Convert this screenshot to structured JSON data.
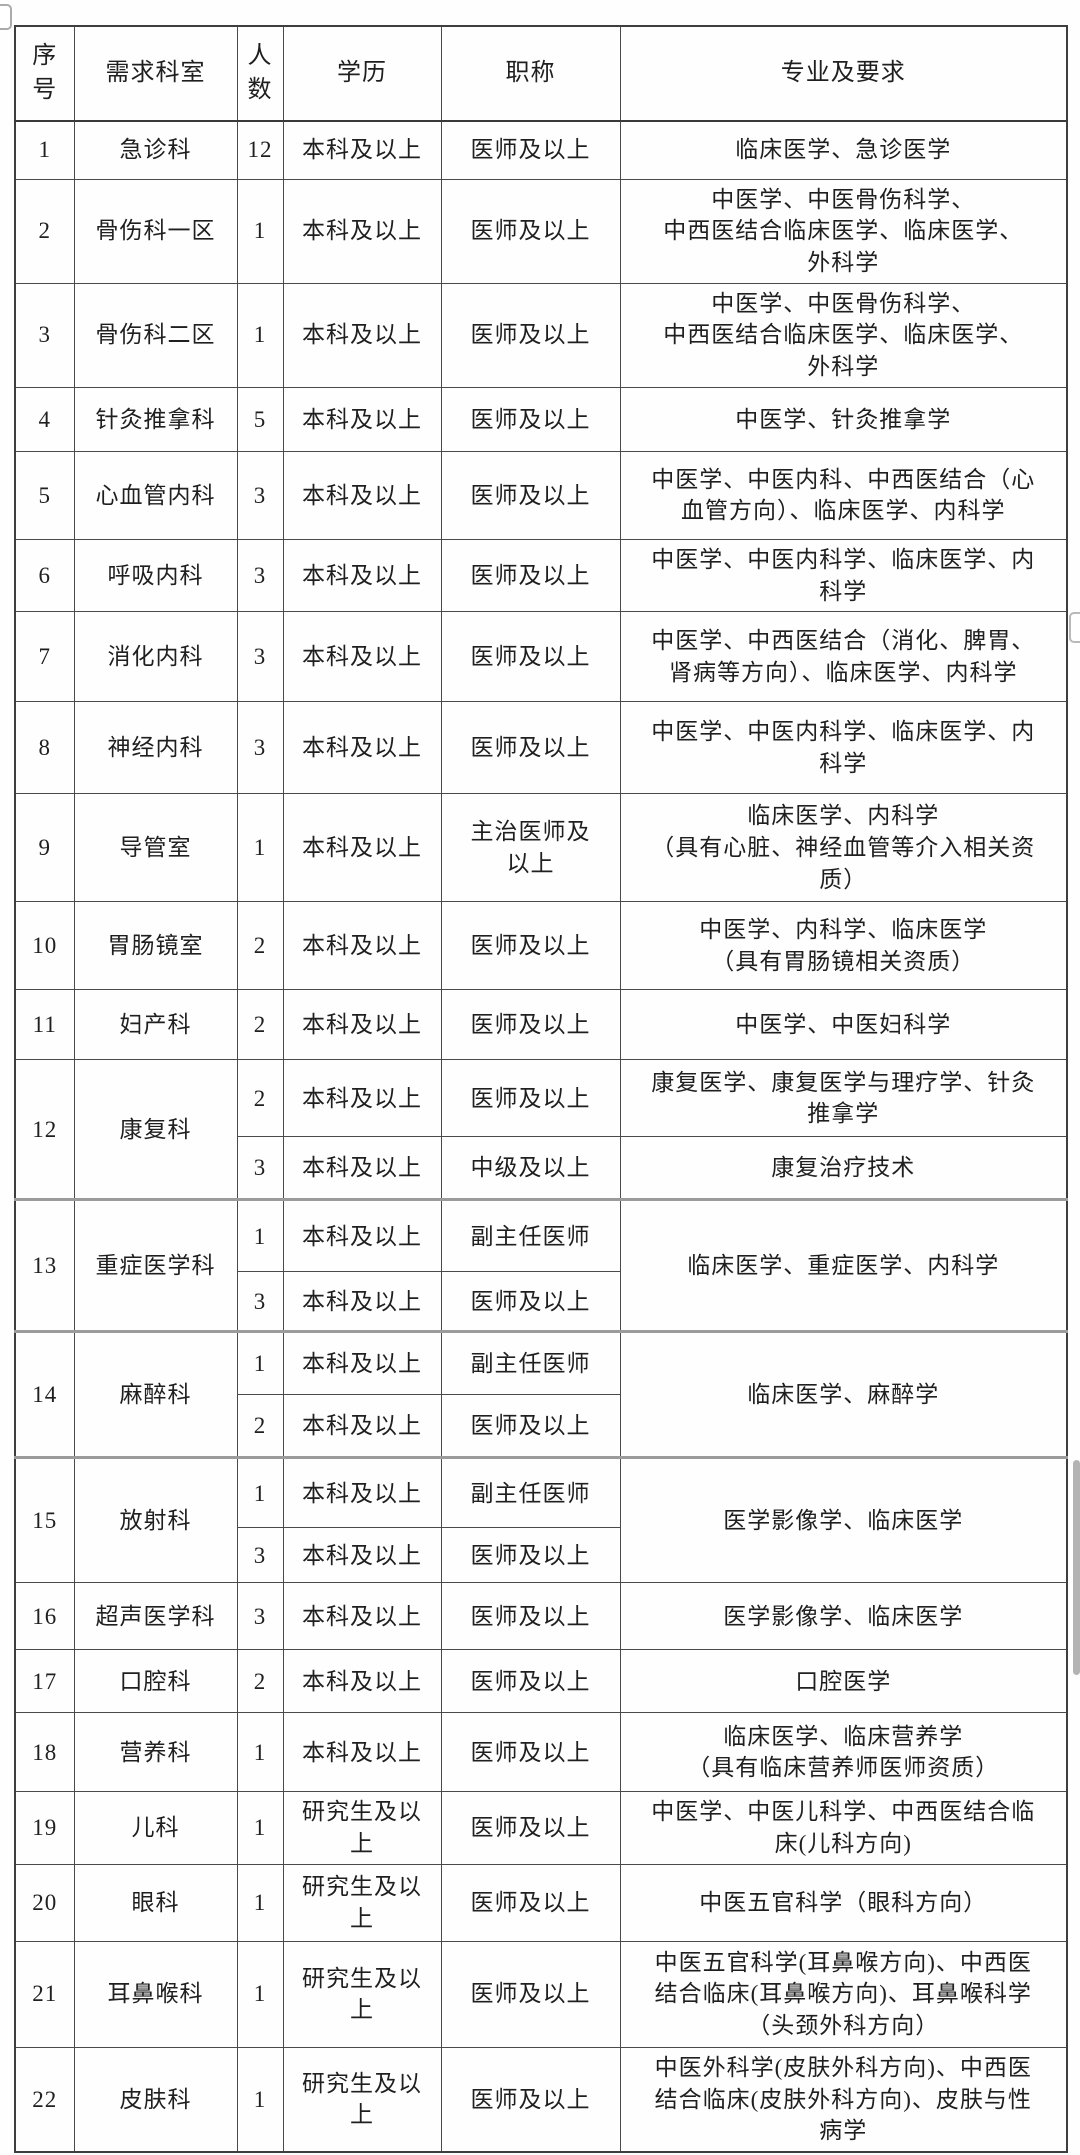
{
  "table": {
    "headers": [
      "序\n号",
      "需求科室",
      "人\n数",
      "学历",
      "职称",
      "专业及要求"
    ],
    "rows": [
      {
        "no": "1",
        "dept": "急诊科",
        "subs": [
          {
            "count": "12",
            "edu": "本科及以上",
            "title": "医师及以上",
            "spec": "临床医学、急诊医学"
          }
        ]
      },
      {
        "no": "2",
        "dept": "骨伤科一区",
        "subs": [
          {
            "count": "1",
            "edu": "本科及以上",
            "title": "医师及以上",
            "spec": "中医学、中医骨伤科学、\n中西医结合临床医学、临床医学、\n外科学"
          }
        ]
      },
      {
        "no": "3",
        "dept": "骨伤科二区",
        "subs": [
          {
            "count": "1",
            "edu": "本科及以上",
            "title": "医师及以上",
            "spec": "中医学、中医骨伤科学、\n中西医结合临床医学、临床医学、\n外科学"
          }
        ]
      },
      {
        "no": "4",
        "dept": "针灸推拿科",
        "subs": [
          {
            "count": "5",
            "edu": "本科及以上",
            "title": "医师及以上",
            "spec": "中医学、针灸推拿学"
          }
        ]
      },
      {
        "no": "5",
        "dept": "心血管内科",
        "subs": [
          {
            "count": "3",
            "edu": "本科及以上",
            "title": "医师及以上",
            "spec": "中医学、中医内科、中西医结合（心\n血管方向）、临床医学、内科学"
          }
        ]
      },
      {
        "no": "6",
        "dept": "呼吸内科",
        "subs": [
          {
            "count": "3",
            "edu": "本科及以上",
            "title": "医师及以上",
            "spec": "中医学、中医内科学、临床医学、内\n科学"
          }
        ]
      },
      {
        "no": "7",
        "dept": "消化内科",
        "subs": [
          {
            "count": "3",
            "edu": "本科及以上",
            "title": "医师及以上",
            "spec": "中医学、中西医结合（消化、脾胃、\n肾病等方向）、临床医学、内科学"
          }
        ]
      },
      {
        "no": "8",
        "dept": "神经内科",
        "subs": [
          {
            "count": "3",
            "edu": "本科及以上",
            "title": "医师及以上",
            "spec": "中医学、中医内科学、临床医学、内\n科学"
          }
        ]
      },
      {
        "no": "9",
        "dept": "导管室",
        "subs": [
          {
            "count": "1",
            "edu": "本科及以上",
            "title": "主治医师及\n以上",
            "spec": "临床医学、内科学\n（具有心脏、神经血管等介入相关资\n质）"
          }
        ]
      },
      {
        "no": "10",
        "dept": "胃肠镜室",
        "subs": [
          {
            "count": "2",
            "edu": "本科及以上",
            "title": "医师及以上",
            "spec": "中医学、内科学、临床医学\n（具有胃肠镜相关资质）"
          }
        ]
      },
      {
        "no": "11",
        "dept": "妇产科",
        "subs": [
          {
            "count": "2",
            "edu": "本科及以上",
            "title": "医师及以上",
            "spec": "中医学、中医妇科学"
          }
        ]
      },
      {
        "no": "12",
        "dept": "康复科",
        "subs": [
          {
            "count": "2",
            "edu": "本科及以上",
            "title": "医师及以上",
            "spec": "康复医学、康复医学与理疗学、针灸\n推拿学"
          },
          {
            "count": "3",
            "edu": "本科及以上",
            "title": "中级及以上",
            "spec": "康复治疗技术"
          }
        ]
      },
      {
        "no": "13",
        "dept": "重症医学科",
        "spec_merged": "临床医学、重症医学、内科学",
        "subs": [
          {
            "count": "1",
            "edu": "本科及以上",
            "title": "副主任医师"
          },
          {
            "count": "3",
            "edu": "本科及以上",
            "title": "医师及以上"
          }
        ]
      },
      {
        "no": "14",
        "dept": "麻醉科",
        "spec_merged": "临床医学、麻醉学",
        "subs": [
          {
            "count": "1",
            "edu": "本科及以上",
            "title": "副主任医师"
          },
          {
            "count": "2",
            "edu": "本科及以上",
            "title": "医师及以上"
          }
        ]
      },
      {
        "no": "15",
        "dept": "放射科",
        "spec_merged": "医学影像学、临床医学",
        "subs": [
          {
            "count": "1",
            "edu": "本科及以上",
            "title": "副主任医师"
          },
          {
            "count": "3",
            "edu": "本科及以上",
            "title": "医师及以上"
          }
        ]
      },
      {
        "no": "16",
        "dept": "超声医学科",
        "subs": [
          {
            "count": "3",
            "edu": "本科及以上",
            "title": "医师及以上",
            "spec": "医学影像学、临床医学"
          }
        ]
      },
      {
        "no": "17",
        "dept": "口腔科",
        "subs": [
          {
            "count": "2",
            "edu": "本科及以上",
            "title": "医师及以上",
            "spec": "口腔医学"
          }
        ]
      },
      {
        "no": "18",
        "dept": "营养科",
        "subs": [
          {
            "count": "1",
            "edu": "本科及以上",
            "title": "医师及以上",
            "spec": "临床医学、临床营养学\n（具有临床营养师医师资质）"
          }
        ]
      },
      {
        "no": "19",
        "dept": "儿科",
        "subs": [
          {
            "count": "1",
            "edu": "研究生及以\n上",
            "title": "医师及以上",
            "spec": "中医学、中医儿科学、中西医结合临\n床(儿科方向)"
          }
        ]
      },
      {
        "no": "20",
        "dept": "眼科",
        "subs": [
          {
            "count": "1",
            "edu": "研究生及以\n上",
            "title": "医师及以上",
            "spec": "中医五官科学（眼科方向）"
          }
        ]
      },
      {
        "no": "21",
        "dept": "耳鼻喉科",
        "subs": [
          {
            "count": "1",
            "edu": "研究生及以\n上",
            "title": "医师及以上",
            "spec": "中医五官科学(耳鼻喉方向)、中西医\n结合临床(耳鼻喉方向)、耳鼻喉科学\n（头颈外科方向）"
          }
        ]
      },
      {
        "no": "22",
        "dept": "皮肤科",
        "subs": [
          {
            "count": "1",
            "edu": "研究生及以\n上",
            "title": "医师及以上",
            "spec": "中医外科学(皮肤外科方向)、中西医\n结合临床(皮肤外科方向)、皮肤与性\n病学"
          }
        ]
      }
    ]
  },
  "colors": {
    "border": "#4a4a4a",
    "outer_border": "#3e3e3e",
    "group_separator": "#9b9b9b",
    "text": "#1f1f1f",
    "background": "#fefefe"
  }
}
